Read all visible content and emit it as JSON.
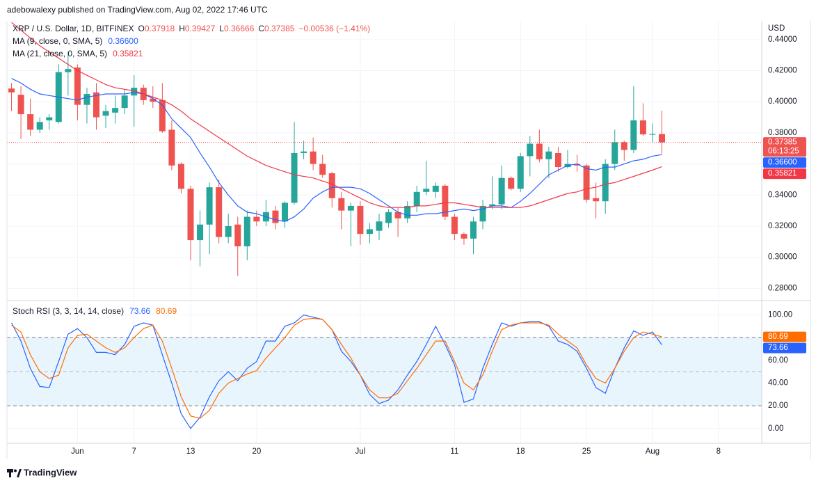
{
  "header": {
    "text": "adebowalexy published on TradingView.com, Aug 02, 2022 17:46 UTC"
  },
  "footer": {
    "brand": "TradingView"
  },
  "chart_data": [
    {
      "type": "candlestick",
      "title": "XRP / U.S. Dollar, 1D, BITFINEX",
      "ohlc_labels": [
        "O",
        "H",
        "L",
        "C"
      ],
      "change_text": "−0.00536 (−1.41%)",
      "y_label": "USD",
      "countdown": "06:13:25",
      "up_color": "#26a69a",
      "down_color": "#ef5350",
      "x": [
        "05-25",
        "05-26",
        "05-27",
        "05-28",
        "05-29",
        "05-30",
        "05-31",
        "06-01",
        "06-02",
        "06-03",
        "06-04",
        "06-05",
        "06-06",
        "06-07",
        "06-08",
        "06-09",
        "06-10",
        "06-11",
        "06-12",
        "06-13",
        "06-14",
        "06-15",
        "06-16",
        "06-17",
        "06-18",
        "06-19",
        "06-20",
        "06-21",
        "06-22",
        "06-23",
        "06-24",
        "06-25",
        "06-26",
        "06-27",
        "06-28",
        "06-29",
        "06-30",
        "07-01",
        "07-02",
        "07-03",
        "07-04",
        "07-05",
        "07-06",
        "07-07",
        "07-08",
        "07-09",
        "07-10",
        "07-11",
        "07-12",
        "07-13",
        "07-14",
        "07-15",
        "07-16",
        "07-17",
        "07-18",
        "07-19",
        "07-20",
        "07-21",
        "07-22",
        "07-23",
        "07-24",
        "07-25",
        "07-26",
        "07-27",
        "07-28",
        "07-29",
        "07-30",
        "07-31",
        "08-01",
        "08-02"
      ],
      "open": [
        0.4085,
        0.4045,
        0.392,
        0.382,
        0.388,
        0.387,
        0.419,
        0.422,
        0.398,
        0.406,
        0.391,
        0.393,
        0.396,
        0.404,
        0.409,
        0.402,
        0.401,
        0.382,
        0.36,
        0.344,
        0.311,
        0.321,
        0.345,
        0.313,
        0.321,
        0.307,
        0.326,
        0.323,
        0.33,
        0.323,
        0.335,
        0.367,
        0.368,
        0.36,
        0.354,
        0.338,
        0.33,
        0.333,
        0.315,
        0.317,
        0.322,
        0.329,
        0.325,
        0.333,
        0.342,
        0.342,
        0.346,
        0.326,
        0.315,
        0.312,
        0.323,
        0.333,
        0.334,
        0.351,
        0.344,
        0.365,
        0.373,
        0.363,
        0.367,
        0.358,
        0.36,
        0.359,
        0.338,
        0.336,
        0.36,
        0.374,
        0.369,
        0.388,
        0.379,
        0.37918
      ],
      "high": [
        0.412,
        0.41,
        0.402,
        0.39,
        0.392,
        0.424,
        0.432,
        0.424,
        0.409,
        0.412,
        0.398,
        0.404,
        0.408,
        0.417,
        0.411,
        0.41,
        0.412,
        0.388,
        0.361,
        0.346,
        0.33,
        0.348,
        0.35,
        0.328,
        0.326,
        0.33,
        0.33,
        0.337,
        0.333,
        0.336,
        0.387,
        0.375,
        0.377,
        0.366,
        0.355,
        0.342,
        0.335,
        0.336,
        0.322,
        0.328,
        0.331,
        0.332,
        0.336,
        0.346,
        0.362,
        0.348,
        0.347,
        0.328,
        0.316,
        0.326,
        0.337,
        0.352,
        0.359,
        0.352,
        0.367,
        0.378,
        0.382,
        0.371,
        0.371,
        0.369,
        0.366,
        0.36,
        0.348,
        0.363,
        0.382,
        0.375,
        0.41,
        0.399,
        0.386,
        0.39427
      ],
      "low": [
        0.394,
        0.376,
        0.378,
        0.38,
        0.382,
        0.386,
        0.404,
        0.388,
        0.386,
        0.382,
        0.383,
        0.386,
        0.392,
        0.384,
        0.398,
        0.396,
        0.38,
        0.356,
        0.341,
        0.298,
        0.294,
        0.302,
        0.309,
        0.309,
        0.288,
        0.298,
        0.32,
        0.32,
        0.318,
        0.319,
        0.334,
        0.363,
        0.356,
        0.351,
        0.332,
        0.318,
        0.307,
        0.308,
        0.309,
        0.311,
        0.319,
        0.313,
        0.322,
        0.329,
        0.34,
        0.338,
        0.324,
        0.311,
        0.308,
        0.302,
        0.318,
        0.331,
        0.331,
        0.343,
        0.342,
        0.352,
        0.361,
        0.351,
        0.355,
        0.357,
        0.355,
        0.335,
        0.325,
        0.328,
        0.356,
        0.362,
        0.367,
        0.378,
        0.374,
        0.36666
      ],
      "close": [
        0.406,
        0.392,
        0.382,
        0.387,
        0.39,
        0.419,
        0.421,
        0.398,
        0.405,
        0.39,
        0.394,
        0.396,
        0.404,
        0.409,
        0.401,
        0.4,
        0.381,
        0.359,
        0.344,
        0.311,
        0.321,
        0.345,
        0.313,
        0.32,
        0.307,
        0.326,
        0.323,
        0.329,
        0.322,
        0.335,
        0.367,
        0.368,
        0.36,
        0.353,
        0.338,
        0.33,
        0.333,
        0.315,
        0.318,
        0.323,
        0.329,
        0.325,
        0.333,
        0.342,
        0.344,
        0.346,
        0.326,
        0.315,
        0.312,
        0.323,
        0.333,
        0.334,
        0.351,
        0.344,
        0.365,
        0.373,
        0.363,
        0.368,
        0.358,
        0.36,
        0.359,
        0.337,
        0.336,
        0.36,
        0.374,
        0.369,
        0.388,
        0.379,
        0.3792,
        0.37385
      ],
      "series": [
        {
          "name": "MA (9, close, 0, SMA, 5)",
          "color": "#2962ff",
          "value_label": "0.36600",
          "values": [
            0.415,
            0.412,
            0.408,
            0.405,
            0.404,
            0.403,
            0.402,
            0.401,
            0.403,
            0.404,
            0.405,
            0.405,
            0.405,
            0.406,
            0.405,
            0.402,
            0.398,
            0.389,
            0.383,
            0.377,
            0.367,
            0.358,
            0.348,
            0.34,
            0.333,
            0.329,
            0.328,
            0.326,
            0.324,
            0.323,
            0.326,
            0.331,
            0.338,
            0.342,
            0.345,
            0.345,
            0.345,
            0.344,
            0.341,
            0.337,
            0.333,
            0.329,
            0.327,
            0.327,
            0.328,
            0.328,
            0.329,
            0.33,
            0.331,
            0.33,
            0.331,
            0.333,
            0.333,
            0.332,
            0.336,
            0.341,
            0.347,
            0.353,
            0.356,
            0.359,
            0.36,
            0.357,
            0.356,
            0.358,
            0.358,
            0.36,
            0.362,
            0.363,
            0.365,
            0.366
          ]
        },
        {
          "name": "MA (21, close, 0, SMA, 5)",
          "color": "#f23645",
          "values": [
            0.451,
            0.446,
            0.441,
            0.436,
            0.432,
            0.428,
            0.424,
            0.42,
            0.417,
            0.414,
            0.411,
            0.409,
            0.408,
            0.407,
            0.405,
            0.403,
            0.401,
            0.398,
            0.394,
            0.389,
            0.385,
            0.381,
            0.377,
            0.373,
            0.369,
            0.365,
            0.362,
            0.359,
            0.357,
            0.355,
            0.353,
            0.352,
            0.351,
            0.349,
            0.347,
            0.344,
            0.341,
            0.338,
            0.335,
            0.333,
            0.332,
            0.332,
            0.332,
            0.333,
            0.333,
            0.334,
            0.335,
            0.335,
            0.334,
            0.333,
            0.332,
            0.332,
            0.332,
            0.332,
            0.332,
            0.333,
            0.335,
            0.337,
            0.339,
            0.341,
            0.342,
            0.344,
            0.345,
            0.347,
            0.348,
            0.35,
            0.352,
            0.354,
            0.356,
            0.35821
          ]
        }
      ],
      "xlim": [
        "05-24",
        "08-12"
      ],
      "xticks": [
        {
          "value": "06-01",
          "label": "Jun"
        },
        {
          "value": "06-07",
          "label": "7"
        },
        {
          "value": "06-13",
          "label": "13"
        },
        {
          "value": "06-20",
          "label": "20"
        },
        {
          "value": "07-01",
          "label": "Jul"
        },
        {
          "value": "07-11",
          "label": "11"
        },
        {
          "value": "07-18",
          "label": "18"
        },
        {
          "value": "07-25",
          "label": "25"
        },
        {
          "value": "08-01",
          "label": "Aug"
        },
        {
          "value": "08-08",
          "label": "8"
        }
      ],
      "ylim": [
        0.273,
        0.452
      ],
      "yticks": [
        {
          "value": 0.28,
          "label": "0.28000"
        },
        {
          "value": 0.3,
          "label": "0.30000"
        },
        {
          "value": 0.32,
          "label": "0.32000"
        },
        {
          "value": 0.34,
          "label": "0.34000"
        },
        {
          "value": 0.36,
          "label": "0.36000"
        },
        {
          "value": 0.38,
          "label": "0.38000"
        },
        {
          "value": 0.4,
          "label": "0.40000"
        },
        {
          "value": 0.42,
          "label": "0.42000"
        },
        {
          "value": 0.44,
          "label": "0.44000"
        }
      ],
      "grid": true
    },
    {
      "type": "line",
      "title": "Stoch RSI (3, 3, 14, 14, close)",
      "x": [
        "05-25",
        "05-26",
        "05-27",
        "05-28",
        "05-29",
        "05-30",
        "05-31",
        "06-01",
        "06-02",
        "06-03",
        "06-04",
        "06-05",
        "06-06",
        "06-07",
        "06-08",
        "06-09",
        "06-10",
        "06-11",
        "06-12",
        "06-13",
        "06-14",
        "06-15",
        "06-16",
        "06-17",
        "06-18",
        "06-19",
        "06-20",
        "06-21",
        "06-22",
        "06-23",
        "06-24",
        "06-25",
        "06-26",
        "06-27",
        "06-28",
        "06-29",
        "06-30",
        "07-01",
        "07-02",
        "07-03",
        "07-04",
        "07-05",
        "07-06",
        "07-07",
        "07-08",
        "07-09",
        "07-10",
        "07-11",
        "07-12",
        "07-13",
        "07-14",
        "07-15",
        "07-16",
        "07-17",
        "07-18",
        "07-19",
        "07-20",
        "07-21",
        "07-22",
        "07-23",
        "07-24",
        "07-25",
        "07-26",
        "07-27",
        "07-28",
        "07-29",
        "07-30",
        "07-31",
        "08-01",
        "08-02"
      ],
      "series": [
        {
          "color": "#2962ff",
          "values": [
            93,
            77,
            53,
            37,
            36,
            59,
            83,
            88,
            80,
            67,
            67,
            65,
            74,
            90,
            93,
            91,
            65,
            40,
            13,
            0,
            10,
            28,
            42,
            50,
            42,
            53,
            59,
            77,
            77,
            90,
            93,
            100,
            98,
            96,
            87,
            68,
            59,
            47,
            30,
            22,
            25,
            34,
            47,
            59,
            74,
            90,
            74,
            56,
            23,
            26,
            53,
            74,
            93,
            90,
            93,
            94,
            94,
            90,
            77,
            74,
            68,
            53,
            36,
            31,
            53,
            71,
            86,
            82,
            85,
            73.66
          ]
        },
        {
          "color": "#ff6d00",
          "values": [
            91,
            85,
            65,
            50,
            44,
            47,
            71,
            82,
            83,
            77,
            71,
            67,
            71,
            80,
            88,
            91,
            77,
            53,
            28,
            11,
            9,
            16,
            31,
            40,
            44,
            48,
            51,
            62,
            71,
            80,
            91,
            96,
            97,
            96,
            87,
            74,
            62,
            47,
            34,
            27,
            27,
            31,
            42,
            53,
            65,
            77,
            77,
            59,
            40,
            34,
            47,
            68,
            87,
            91,
            93,
            93,
            93,
            91,
            83,
            77,
            71,
            56,
            44,
            40,
            53,
            68,
            80,
            85,
            83,
            80.69
          ]
        }
      ],
      "band": [
        20,
        80
      ],
      "midline": 50,
      "band_color": "#e3f2fd",
      "ylim": [
        -13,
        112
      ],
      "yticks": [
        {
          "value": 0,
          "label": "0.00"
        },
        {
          "value": 20,
          "label": "20.00"
        },
        {
          "value": 40,
          "label": "40.00"
        },
        {
          "value": 60,
          "label": "60.00"
        },
        {
          "value": 80,
          "label": "80.00"
        },
        {
          "value": 100,
          "label": "100.00"
        }
      ],
      "grid": true
    }
  ]
}
